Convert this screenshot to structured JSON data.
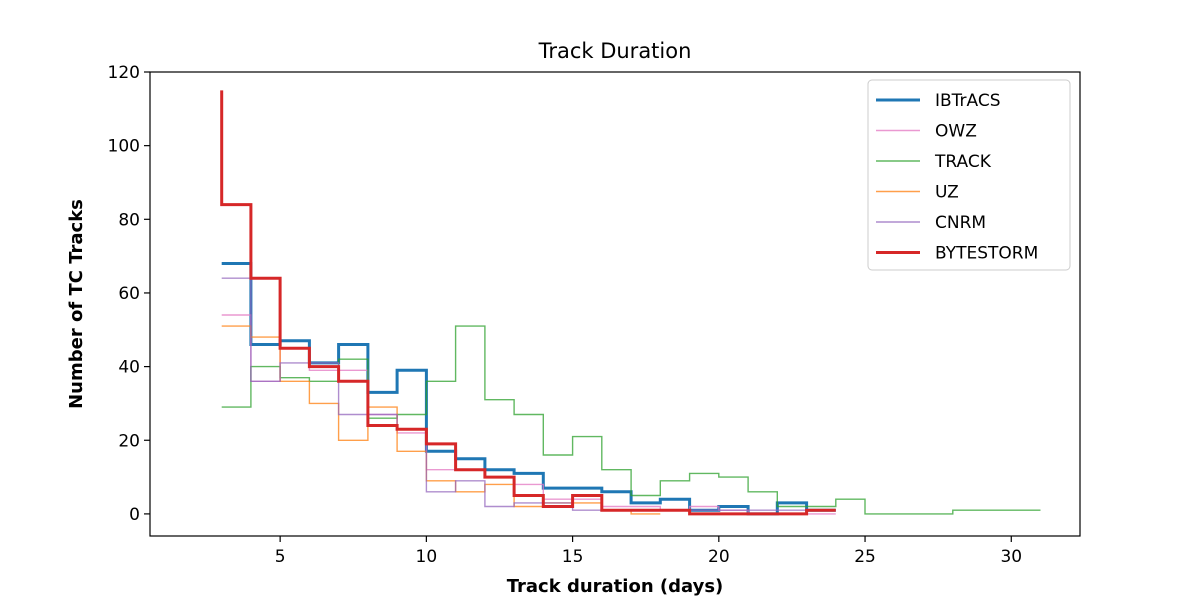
{
  "chart_data": {
    "type": "line",
    "title": "Track Duration",
    "xlabel": "Track duration (days)",
    "ylabel": "Number of TC Tracks",
    "xlim": [
      0.55,
      32.35
    ],
    "ylim": [
      -6,
      120
    ],
    "xticks": [
      5,
      10,
      15,
      20,
      25,
      30
    ],
    "yticks": [
      0,
      20,
      40,
      60,
      80,
      100,
      120
    ],
    "grid": false,
    "legend_position": "top-right",
    "series": [
      {
        "name": "IBTrACS",
        "color": "#1f77b4",
        "width": 3,
        "edges": [
          3,
          4,
          5,
          6,
          7,
          8,
          9,
          10,
          11,
          12,
          13,
          14,
          15,
          16,
          17,
          18,
          19,
          20,
          21,
          22,
          23,
          24
        ],
        "values": [
          68,
          46,
          47,
          41,
          46,
          33,
          39,
          17,
          15,
          12,
          11,
          7,
          7,
          6,
          3,
          4,
          1,
          2,
          0,
          3,
          1
        ]
      },
      {
        "name": "OWZ",
        "color": "#e377c2",
        "width": 1.4,
        "edges": [
          3,
          4,
          5,
          6,
          7,
          8,
          9,
          10,
          11,
          12,
          13,
          14,
          15,
          16,
          17,
          18,
          19,
          20,
          21,
          22,
          23,
          24
        ],
        "values": [
          54,
          36,
          45,
          39,
          39,
          27,
          22,
          12,
          12,
          10,
          8,
          4,
          4,
          2,
          2,
          1,
          2,
          1,
          0,
          0,
          0
        ]
      },
      {
        "name": "TRACK",
        "color": "#2ca02c",
        "width": 1.4,
        "edges": [
          3,
          4,
          5,
          6,
          7,
          8,
          9,
          10,
          11,
          12,
          13,
          14,
          15,
          16,
          17,
          18,
          19,
          20,
          21,
          22,
          23,
          24,
          25,
          26,
          27,
          28,
          29,
          30,
          31
        ],
        "values": [
          29,
          40,
          37,
          36,
          42,
          26,
          27,
          36,
          51,
          31,
          27,
          16,
          21,
          12,
          5,
          9,
          11,
          10,
          6,
          2,
          2,
          4,
          0,
          0,
          0,
          1,
          1,
          1
        ]
      },
      {
        "name": "UZ",
        "color": "#ff7f0e",
        "width": 1.4,
        "edges": [
          3,
          4,
          5,
          6,
          7,
          8,
          9,
          10,
          11,
          12,
          13,
          14,
          15,
          16,
          17,
          18
        ],
        "values": [
          51,
          48,
          36,
          30,
          20,
          29,
          17,
          9,
          6,
          8,
          2,
          3,
          3,
          1,
          0
        ]
      },
      {
        "name": "CNRM",
        "color": "#9467bd",
        "width": 1.4,
        "edges": [
          3,
          4,
          5,
          6,
          7,
          8,
          9,
          10,
          11,
          12,
          13,
          14,
          15,
          16,
          17,
          18,
          19,
          20,
          21,
          22,
          23
        ],
        "values": [
          64,
          36,
          41,
          41,
          27,
          27,
          23,
          6,
          9,
          2,
          3,
          3,
          1,
          1,
          1,
          1,
          1,
          1,
          1,
          1
        ]
      },
      {
        "name": "BYTESTORM",
        "color": "#d62728",
        "width": 3,
        "edges": [
          3,
          4,
          5,
          6,
          7,
          8,
          9,
          10,
          11,
          12,
          13,
          14,
          15,
          16,
          17,
          18,
          19,
          20,
          21,
          22,
          23,
          24
        ],
        "values": [
          84,
          64,
          45,
          40,
          36,
          24,
          23,
          19,
          12,
          10,
          5,
          2,
          5,
          1,
          1,
          1,
          0,
          0,
          0,
          0,
          1
        ],
        "spike": 115
      }
    ]
  }
}
